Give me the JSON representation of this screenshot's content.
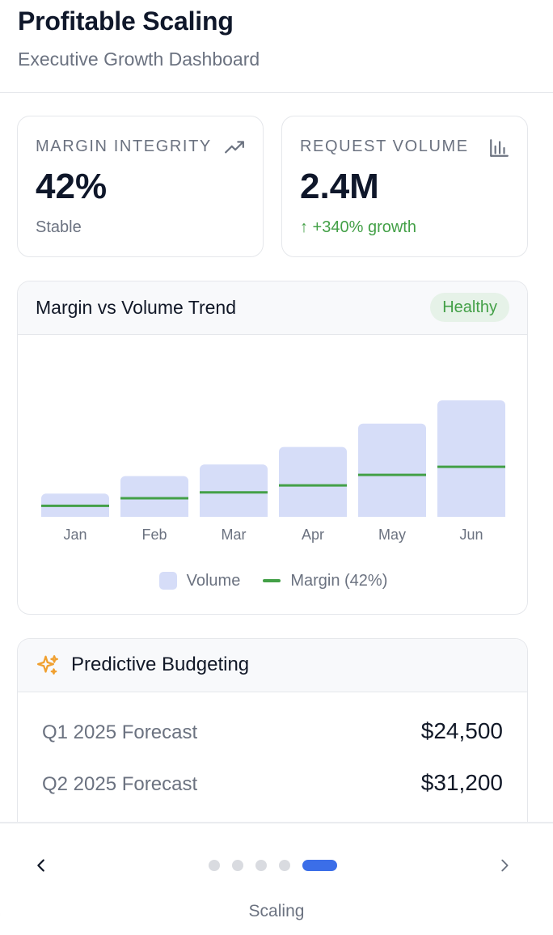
{
  "header": {
    "title": "Profitable Scaling",
    "subtitle": "Executive Growth Dashboard"
  },
  "kpis": [
    {
      "label": "MARGIN INTEGRITY",
      "icon": "trending-up-icon",
      "value": "42%",
      "sub": "Stable"
    },
    {
      "label": "REQUEST VOLUME",
      "icon": "bar-chart-icon",
      "value": "2.4M",
      "sub": "↑ +340% growth"
    }
  ],
  "trend_card": {
    "title": "Margin vs Volume Trend",
    "badge": "Healthy",
    "legend": {
      "volume": "Volume",
      "margin": "Margin (42%)"
    }
  },
  "chart_data": {
    "type": "bar",
    "categories": [
      "Jan",
      "Feb",
      "Mar",
      "Apr",
      "May",
      "Jun"
    ],
    "series": [
      {
        "name": "Volume",
        "type": "bar",
        "values": [
          20,
          35,
          45,
          60,
          80,
          100
        ]
      },
      {
        "name": "Margin (42%)",
        "type": "line-marker",
        "values": [
          9.5,
          16,
          21,
          27,
          36,
          43
        ]
      }
    ],
    "ylim": [
      0,
      100
    ],
    "grid": false,
    "legend": "bottom",
    "colors": {
      "volume": "#d6ddf8",
      "margin": "#43a047"
    }
  },
  "budget_card": {
    "icon": "sparkles-icon",
    "title": "Predictive Budgeting",
    "rows": [
      {
        "label": "Q1 2025 Forecast",
        "value": "$24,500"
      },
      {
        "label": "Q2 2025 Forecast",
        "value": "$31,200"
      }
    ]
  },
  "nav": {
    "label": "Scaling",
    "page_count": 5,
    "active_page": 5,
    "prev_icon": "chevron-left-icon",
    "next_icon": "chevron-right-icon"
  },
  "colors": {
    "accent": "#3b6ee8",
    "positive": "#43a047",
    "muted_text": "#6b7280"
  }
}
